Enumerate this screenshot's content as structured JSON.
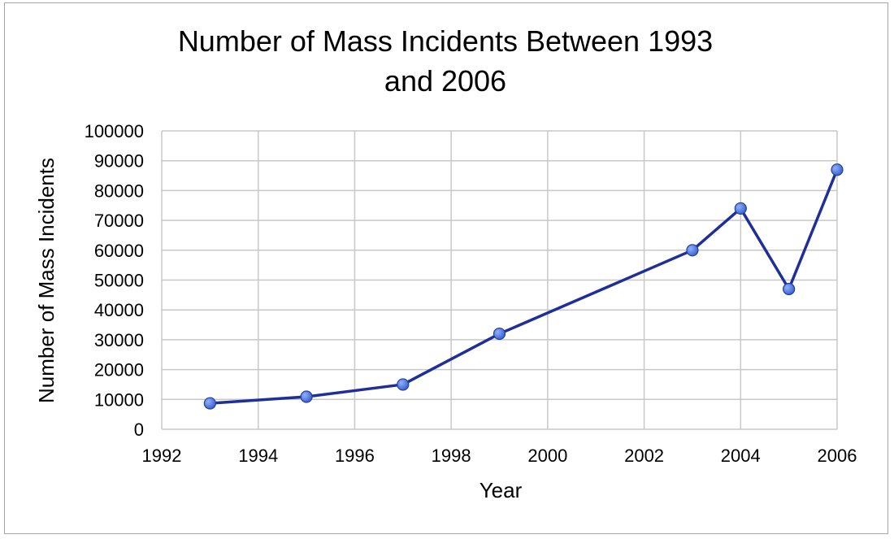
{
  "chart_data": {
    "type": "line",
    "title_lines": [
      "Number of Mass Incidents Between 1993",
      "and 2006"
    ],
    "xlabel": "Year",
    "ylabel": "Number of Mass Incidents",
    "xlim": [
      1992,
      2006
    ],
    "ylim": [
      0,
      100000
    ],
    "x_ticks": [
      1992,
      1994,
      1996,
      1998,
      2000,
      2002,
      2004,
      2006
    ],
    "y_ticks": [
      0,
      10000,
      20000,
      30000,
      40000,
      50000,
      60000,
      70000,
      80000,
      90000,
      100000
    ],
    "grid": true,
    "legend": "none",
    "series": [
      {
        "color": "#1f2f9a",
        "marker_color": "#3a5fc8",
        "x": [
          1993,
          1995,
          1997,
          1999,
          2003,
          2004,
          2005,
          2006
        ],
        "y": [
          8700,
          10900,
          15000,
          32000,
          60000,
          74000,
          47000,
          87000
        ]
      }
    ]
  }
}
